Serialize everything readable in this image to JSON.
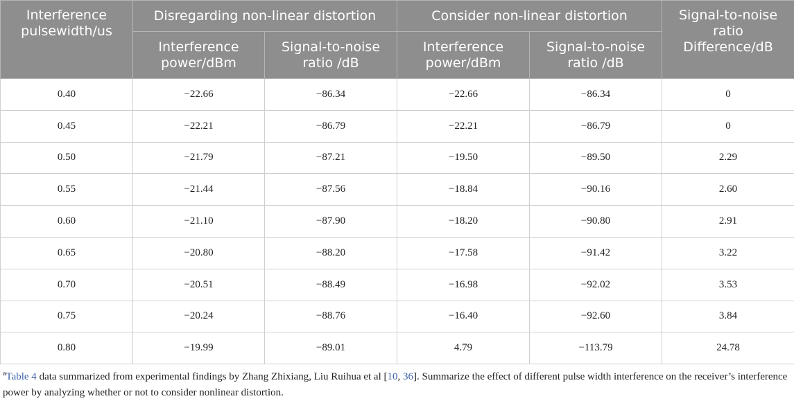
{
  "table": {
    "header": {
      "col0": "Interference pulsewidth/us",
      "group1": "Disregarding non-linear distortion",
      "group2": "Consider non-linear distortion",
      "col5": "Signal-to-noise ratio Difference/dB",
      "sub": [
        "Interference power/dBm",
        "Signal-to-noise ratio /dB",
        "Interference power/dBm",
        "Signal-to-noise ratio /dB"
      ]
    },
    "rows": [
      [
        "0.40",
        "−22.66",
        "−86.34",
        "−22.66",
        "−86.34",
        "0"
      ],
      [
        "0.45",
        "−22.21",
        "−86.79",
        "−22.21",
        "−86.79",
        "0"
      ],
      [
        "0.50",
        "−21.79",
        "−87.21",
        "−19.50",
        "−89.50",
        "2.29"
      ],
      [
        "0.55",
        "−21.44",
        "−87.56",
        "−18.84",
        "−90.16",
        "2.60"
      ],
      [
        "0.60",
        "−21.10",
        "−87.90",
        "−18.20",
        "−90.80",
        "2.91"
      ],
      [
        "0.65",
        "−20.80",
        "−88.20",
        "−17.58",
        "−91.42",
        "3.22"
      ],
      [
        "0.70",
        "−20.51",
        "−88.49",
        "−16.98",
        "−92.02",
        "3.53"
      ],
      [
        "0.75",
        "−20.24",
        "−88.76",
        "−16.40",
        "−92.60",
        "3.84"
      ],
      [
        "0.80",
        "−19.99",
        "−89.01",
        "4.79",
        "−113.79",
        "24.78"
      ]
    ]
  },
  "footnote": {
    "marker": "a",
    "table_ref": "Table 4",
    "text1": " data summarized from experimental findings by Zhang Zhixiang, Liu Ruihua et al [",
    "ref1": "10",
    "sep": ", ",
    "ref2": "36",
    "text2": "]. Summarize the effect of different pulse width interference on the receiver’s interference power by analyzing whether or not to consider nonlinear distortion."
  }
}
